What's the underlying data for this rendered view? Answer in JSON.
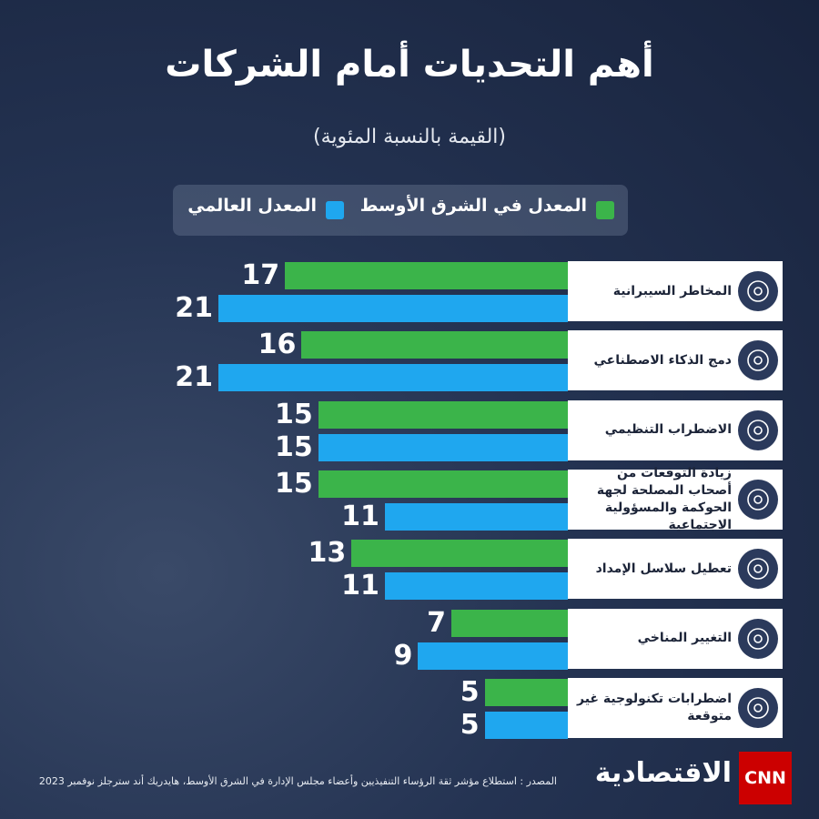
{
  "chart_data": {
    "type": "bar",
    "orientation": "horizontal",
    "title": "أهم التحديات أمام الشركات",
    "subtitle": "(القيمة بالنسبة المئوية)",
    "categories": [
      "المخاطر السيبرانية",
      "دمج الذكاء الاصطناعي",
      "الاضطراب التنظيمي",
      "زيادة التوقعات من أصحاب المصلحة لجهة الحوكمة والمسؤولية الاجتماعية",
      "تعطيل سلاسل الإمداد",
      "التغيير المناخي",
      "اضطرابات تكنولوجية غير متوقعة"
    ],
    "series": [
      {
        "name": "المعدل  في الشرق الأوسط",
        "color": "#3bb44a",
        "values": [
          17,
          16,
          15,
          15,
          13,
          7,
          5
        ]
      },
      {
        "name": "المعدل العالمي",
        "color": "#1fa7ef",
        "values": [
          21,
          21,
          15,
          11,
          11,
          9,
          5
        ]
      }
    ],
    "source": "المصدر : استطلاع مؤشر ثقة الرؤساء التنفيذيين وأعضاء مجلس الإدارة في الشرق الأوسط، هايدريك أند سترجلز نوفمبر 2023",
    "logo": "CNN",
    "brand": "الاقتصادية"
  }
}
